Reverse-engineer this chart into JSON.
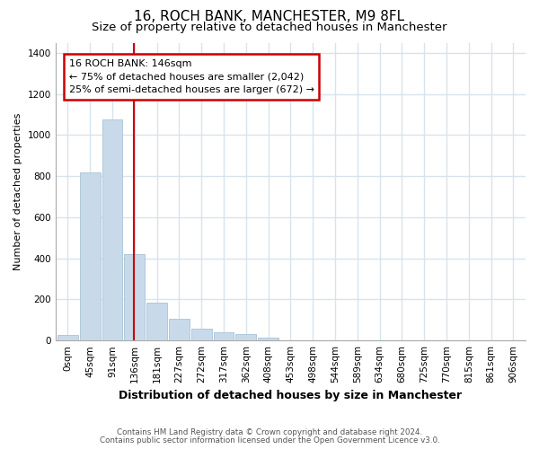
{
  "title": "16, ROCH BANK, MANCHESTER, M9 8FL",
  "subtitle": "Size of property relative to detached houses in Manchester",
  "xlabel": "Distribution of detached houses by size in Manchester",
  "ylabel": "Number of detached properties",
  "bar_color": "#c8daea",
  "bar_edge_color": "#b0c8da",
  "vline_color": "#cc0000",
  "annotation_text": "16 ROCH BANK: 146sqm\n← 75% of detached houses are smaller (2,042)\n25% of semi-detached houses are larger (672) →",
  "annotation_box_edge": "#cc0000",
  "footnote1": "Contains HM Land Registry data © Crown copyright and database right 2024.",
  "footnote2": "Contains public sector information licensed under the Open Government Licence v3.0.",
  "categories": [
    "0sqm",
    "45sqm",
    "91sqm",
    "136sqm",
    "181sqm",
    "227sqm",
    "272sqm",
    "317sqm",
    "362sqm",
    "408sqm",
    "453sqm",
    "498sqm",
    "544sqm",
    "589sqm",
    "634sqm",
    "680sqm",
    "725sqm",
    "770sqm",
    "815sqm",
    "861sqm",
    "906sqm"
  ],
  "values": [
    25,
    820,
    1075,
    420,
    185,
    105,
    58,
    38,
    30,
    15,
    0,
    0,
    0,
    0,
    0,
    0,
    0,
    0,
    0,
    0,
    0
  ],
  "ylim_max": 1450,
  "yticks": [
    0,
    200,
    400,
    600,
    800,
    1000,
    1200,
    1400
  ],
  "bg_color": "#ffffff",
  "grid_color": "#d8e4ed",
  "title_fontsize": 11,
  "subtitle_fontsize": 9.5,
  "xlabel_fontsize": 9,
  "ylabel_fontsize": 8,
  "tick_fontsize": 7.5,
  "annot_fontsize": 8
}
